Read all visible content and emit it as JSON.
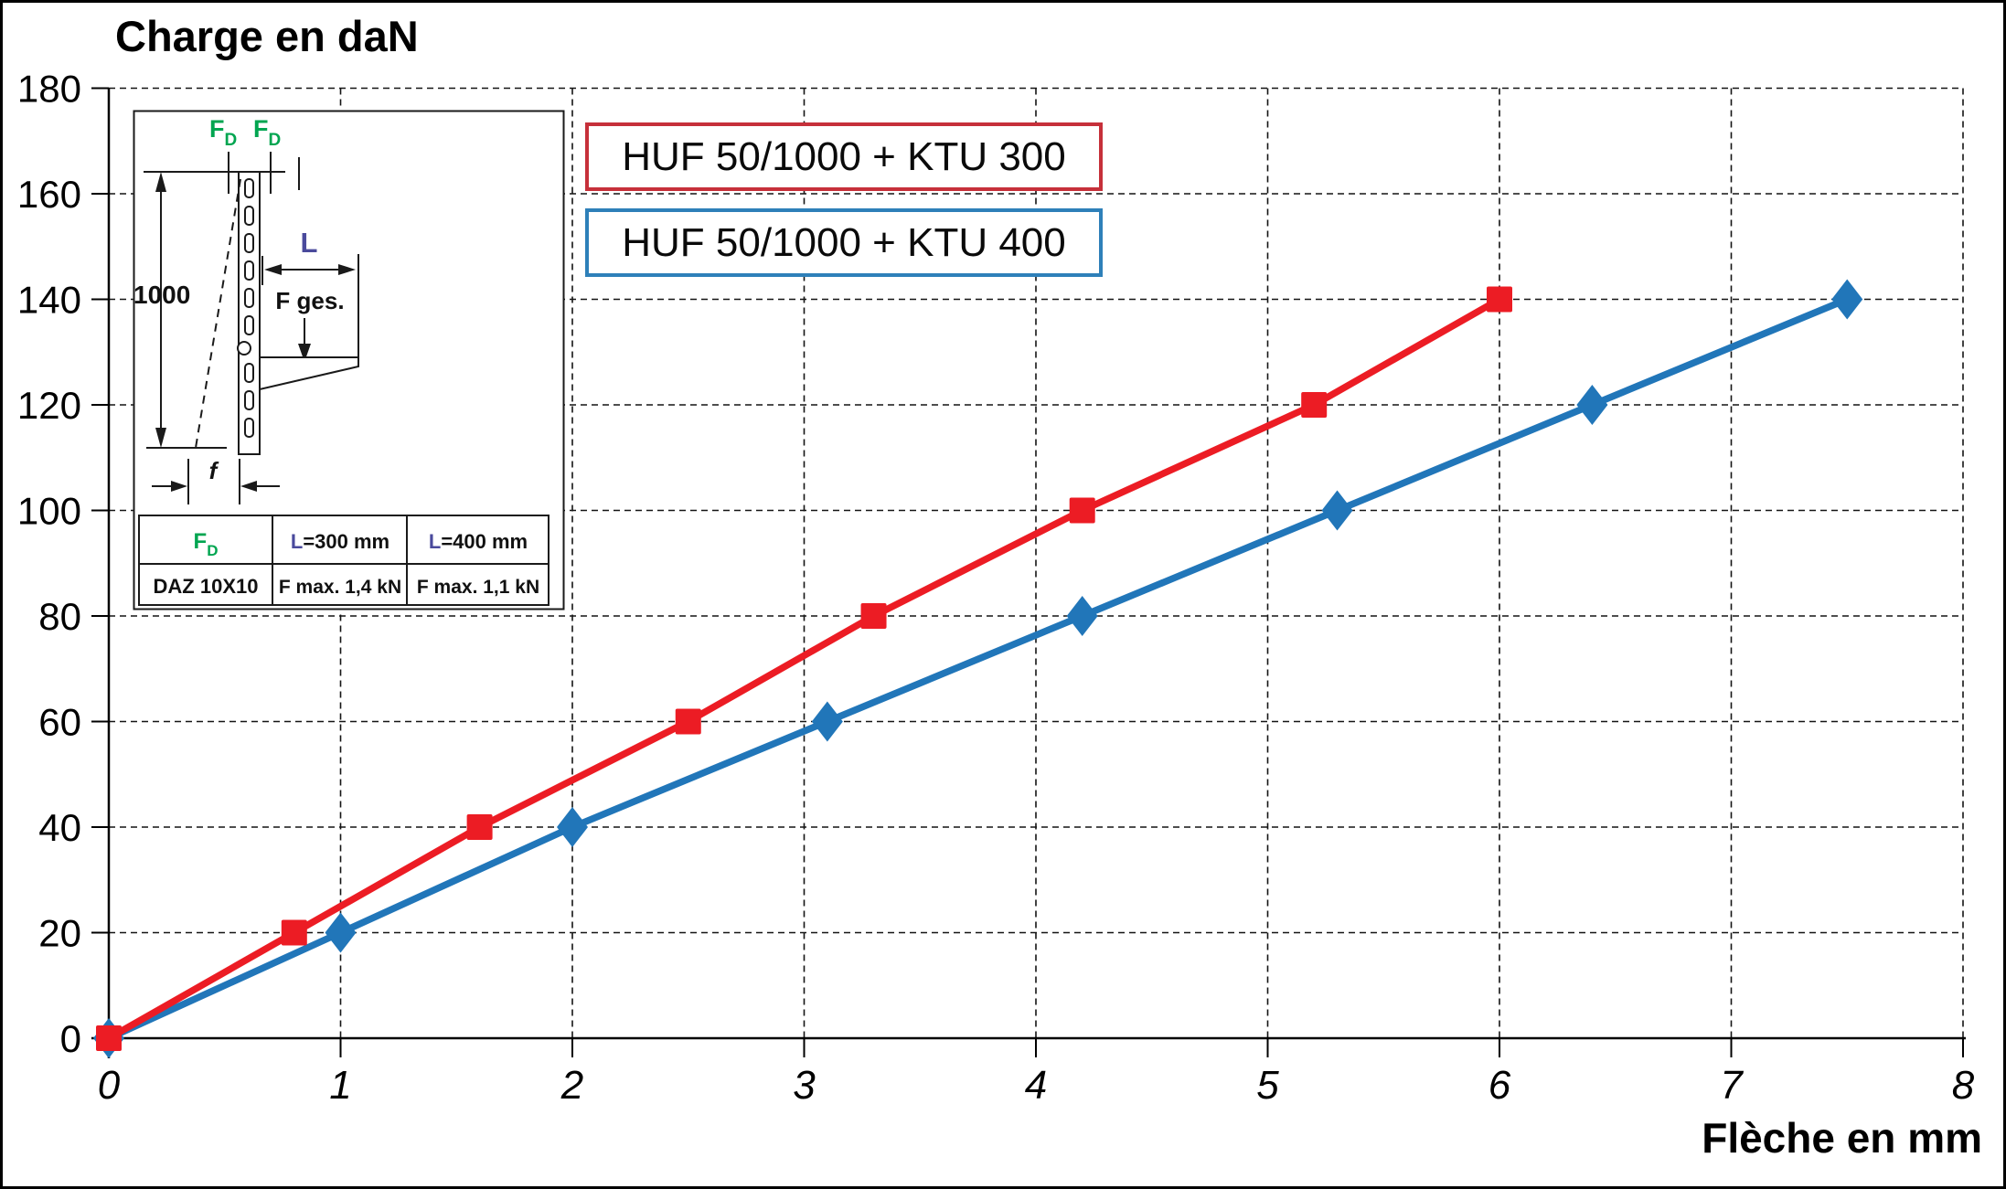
{
  "title": "Charge en daN",
  "x_axis": {
    "label": "Flèche en mm",
    "ticks": [
      "0",
      "1",
      "2",
      "3",
      "4",
      "5",
      "6",
      "7",
      "8"
    ]
  },
  "y_axis": {
    "ticks": [
      "0",
      "20",
      "40",
      "60",
      "80",
      "100",
      "120",
      "140",
      "160",
      "180"
    ]
  },
  "legend": [
    {
      "label": "HUF 50/1000 + KTU 300",
      "border_color": "#c6303a"
    },
    {
      "label": "HUF 50/1000 + KTU 400",
      "border_color": "#2e80b9"
    }
  ],
  "colors": {
    "green": "#00a550",
    "purple": "#4a4a9c",
    "grid": "#141414"
  },
  "inset": {
    "fd_main": "F",
    "fd_sub": "D",
    "dim_height": "1000",
    "length_label": "L",
    "force_label": "F ges.",
    "deflection_label": "f",
    "table": {
      "col1_main": "F",
      "col1_sub": "D",
      "col2_prefix": "L",
      "col2_rest": "=300 mm",
      "col3_prefix": "L",
      "col3_rest": "=400 mm",
      "row2": [
        "DAZ 10X10",
        "F max. 1,4 kN",
        "F max. 1,1 kN"
      ]
    }
  },
  "chart_data": {
    "type": "line",
    "title": "Charge en daN",
    "xlabel": "Flèche en mm",
    "ylabel": "Charge en daN",
    "xlim": [
      0,
      8
    ],
    "ylim": [
      0,
      180
    ],
    "x_tick_step": 1,
    "y_tick_step": 20,
    "grid": true,
    "legend_position": "top-left",
    "series": [
      {
        "name": "HUF 50/1000 + KTU 400",
        "color": "#2176b9",
        "marker": "diamond",
        "points": [
          [
            0,
            0
          ],
          [
            1.0,
            20
          ],
          [
            2.0,
            40
          ],
          [
            3.1,
            60
          ],
          [
            4.2,
            80
          ],
          [
            5.3,
            100
          ],
          [
            6.4,
            120
          ],
          [
            7.5,
            140
          ]
        ]
      },
      {
        "name": "HUF 50/1000 + KTU 300",
        "color": "#ec1c24",
        "marker": "square",
        "points": [
          [
            0,
            0
          ],
          [
            0.8,
            20
          ],
          [
            1.6,
            40
          ],
          [
            2.5,
            60
          ],
          [
            3.3,
            80
          ],
          [
            4.2,
            100
          ],
          [
            5.2,
            120
          ],
          [
            6.0,
            140
          ]
        ]
      }
    ]
  }
}
